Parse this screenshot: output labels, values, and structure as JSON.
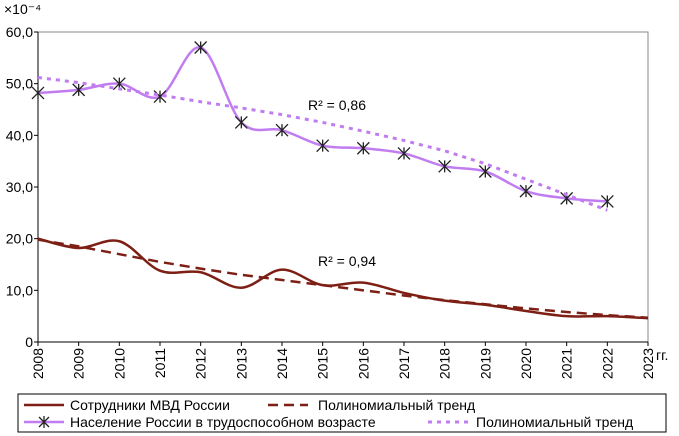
{
  "chart_data": {
    "type": "line",
    "y_axis_unit": "×10⁻⁴",
    "x_axis_unit": "гг.",
    "x": [
      2008,
      2009,
      2010,
      2011,
      2012,
      2013,
      2014,
      2015,
      2016,
      2017,
      2018,
      2019,
      2020,
      2021,
      2022,
      2023
    ],
    "xlim": [
      2008,
      2023
    ],
    "xticks": [
      2008,
      2009,
      2010,
      2011,
      2012,
      2013,
      2014,
      2015,
      2016,
      2017,
      2018,
      2019,
      2020,
      2021,
      2022,
      2023
    ],
    "ylim": [
      0,
      60
    ],
    "yticks": [
      0,
      {
        "value": 10,
        "label": "10,0"
      },
      {
        "value": 20,
        "label": "20,0"
      },
      {
        "value": 30,
        "label": "30,0"
      },
      {
        "value": 40,
        "label": "40,0"
      },
      {
        "value": 50,
        "label": "50,0"
      },
      {
        "value": 60,
        "label": "60,0"
      }
    ],
    "series": [
      {
        "name": "Сотрудники МВД России",
        "color": "#7d1f14",
        "style": "solid",
        "values": [
          20,
          18.2,
          19.5,
          13.8,
          13.5,
          10.5,
          14,
          11,
          11.5,
          9.5,
          8,
          7.2,
          6,
          5,
          5,
          4.6
        ]
      },
      {
        "name": "Полиномиальный тренд",
        "color": "#7d1f14",
        "style": "dashed",
        "values": [
          19.8,
          18.5,
          17,
          15.5,
          14.2,
          13,
          12,
          11,
          10,
          9,
          8.1,
          7.3,
          6.5,
          5.8,
          5.2,
          4.7
        ]
      },
      {
        "name": "Население России в трудоспособном возрасте",
        "color": "#c07cf0",
        "style": "solid",
        "marker": "asterisk",
        "values": [
          48.2,
          48.8,
          50,
          47.5,
          57,
          42.5,
          41,
          38,
          37.5,
          36.5,
          34,
          33,
          29.2,
          27.8,
          27.2,
          null
        ]
      },
      {
        "name": "Полиномиальный тренд",
        "color": "#c07cf0",
        "style": "dotted",
        "values": [
          51.2,
          50.2,
          49,
          47.8,
          46.5,
          45.3,
          44,
          42.5,
          40.8,
          39,
          37,
          34.5,
          31.5,
          28.5,
          25.5,
          null
        ]
      }
    ],
    "annotations": [
      "R² = 0,86",
      "R² = 0,94"
    ]
  }
}
